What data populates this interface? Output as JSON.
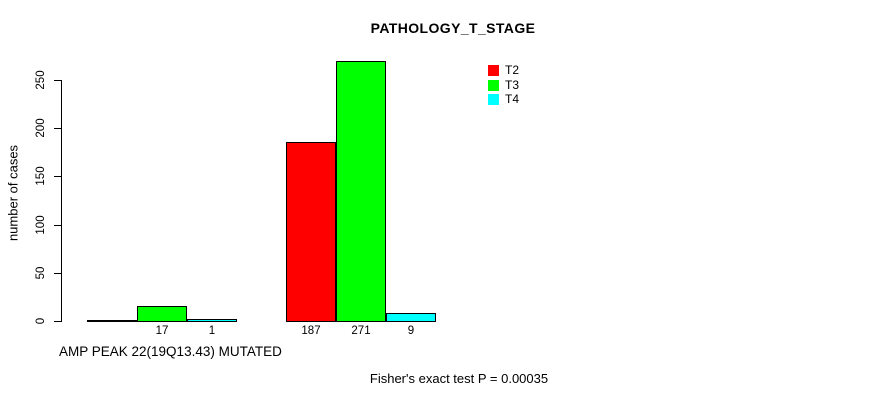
{
  "chart_data": {
    "type": "bar",
    "title": "PATHOLOGY_T_STAGE",
    "ylabel": "number of cases",
    "xlabel": "",
    "ylim": [
      0,
      280
    ],
    "yticks": [
      0,
      50,
      100,
      150,
      200,
      250
    ],
    "grid": false,
    "categories": [
      "T2",
      "T3",
      "T4"
    ],
    "legend": {
      "position": "top-right",
      "entries": [
        {
          "label": "T2",
          "color": "#FF0000"
        },
        {
          "label": "T3",
          "color": "#00FF00"
        },
        {
          "label": "T4",
          "color": "#00FFFF"
        }
      ]
    },
    "groups": [
      {
        "label": "AMP PEAK 22(19Q13.43) MUTATED",
        "values": [
          0,
          17,
          1
        ],
        "value_labels": [
          "",
          "17",
          "1"
        ]
      },
      {
        "label": "",
        "values": [
          187,
          271,
          9
        ],
        "value_labels": [
          "187",
          "271",
          "9"
        ]
      }
    ],
    "footer": "Fisher's exact test P = 0.00035"
  }
}
